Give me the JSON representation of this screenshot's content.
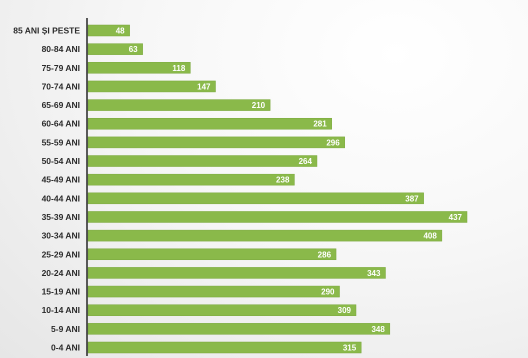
{
  "chart_data": {
    "type": "bar",
    "orientation": "horizontal",
    "title": "",
    "xlabel": "",
    "ylabel": "",
    "categories": [
      "85 ANI ȘI PESTE",
      "80-84 ANI",
      "75-79 ANI",
      "70-74 ANI",
      "65-69 ANI",
      "60-64 ANI",
      "55-59 ANI",
      "50-54 ANI",
      "45-49 ANI",
      "40-44 ANI",
      "35-39 ANI",
      "30-34 ANI",
      "25-29 ANI",
      "20-24 ANI",
      "15-19 ANI",
      "10-14 ANI",
      "5-9 ANI",
      "0-4 ANI"
    ],
    "values": [
      48,
      63,
      118,
      147,
      210,
      281,
      296,
      264,
      238,
      387,
      437,
      408,
      286,
      343,
      290,
      309,
      348,
      315
    ],
    "xlim": [
      0,
      437
    ],
    "grid": false,
    "data_labels": true,
    "colors": {
      "bar": "#8ab94a",
      "bar_edge": "#7aa83c",
      "axis": "#333333",
      "label_text": "#2b2b2b",
      "value_text": "#ffffff"
    }
  }
}
